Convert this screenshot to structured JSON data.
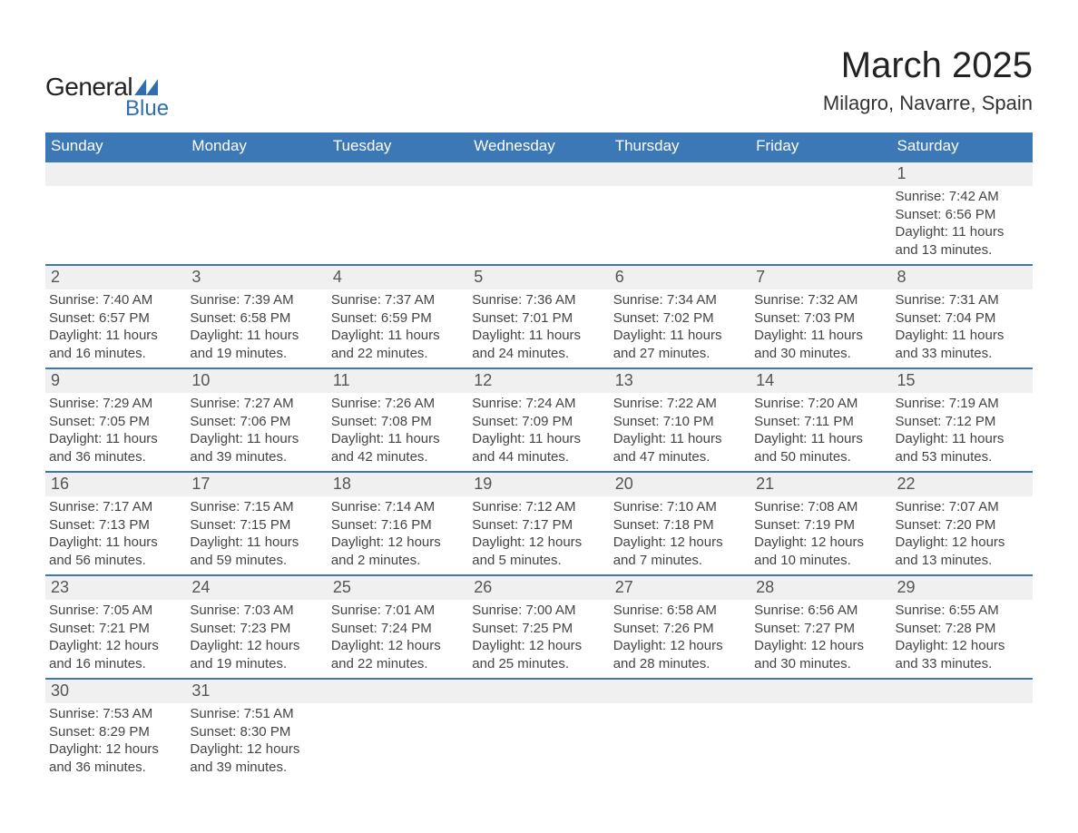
{
  "logo": {
    "general": "General",
    "blue": "Blue"
  },
  "title": "March 2025",
  "location": "Milagro, Navarre, Spain",
  "colors": {
    "header_bg": "#3b78b5",
    "header_text": "#ffffff",
    "daynum_bg": "#f0f0f0",
    "border": "#3b78b5",
    "text": "#444444"
  },
  "day_names": [
    "Sunday",
    "Monday",
    "Tuesday",
    "Wednesday",
    "Thursday",
    "Friday",
    "Saturday"
  ],
  "weeks": [
    {
      "days": [
        {
          "num": "",
          "sunrise": "",
          "sunset": "",
          "daylight1": "",
          "daylight2": ""
        },
        {
          "num": "",
          "sunrise": "",
          "sunset": "",
          "daylight1": "",
          "daylight2": ""
        },
        {
          "num": "",
          "sunrise": "",
          "sunset": "",
          "daylight1": "",
          "daylight2": ""
        },
        {
          "num": "",
          "sunrise": "",
          "sunset": "",
          "daylight1": "",
          "daylight2": ""
        },
        {
          "num": "",
          "sunrise": "",
          "sunset": "",
          "daylight1": "",
          "daylight2": ""
        },
        {
          "num": "",
          "sunrise": "",
          "sunset": "",
          "daylight1": "",
          "daylight2": ""
        },
        {
          "num": "1",
          "sunrise": "Sunrise: 7:42 AM",
          "sunset": "Sunset: 6:56 PM",
          "daylight1": "Daylight: 11 hours",
          "daylight2": "and 13 minutes."
        }
      ]
    },
    {
      "days": [
        {
          "num": "2",
          "sunrise": "Sunrise: 7:40 AM",
          "sunset": "Sunset: 6:57 PM",
          "daylight1": "Daylight: 11 hours",
          "daylight2": "and 16 minutes."
        },
        {
          "num": "3",
          "sunrise": "Sunrise: 7:39 AM",
          "sunset": "Sunset: 6:58 PM",
          "daylight1": "Daylight: 11 hours",
          "daylight2": "and 19 minutes."
        },
        {
          "num": "4",
          "sunrise": "Sunrise: 7:37 AM",
          "sunset": "Sunset: 6:59 PM",
          "daylight1": "Daylight: 11 hours",
          "daylight2": "and 22 minutes."
        },
        {
          "num": "5",
          "sunrise": "Sunrise: 7:36 AM",
          "sunset": "Sunset: 7:01 PM",
          "daylight1": "Daylight: 11 hours",
          "daylight2": "and 24 minutes."
        },
        {
          "num": "6",
          "sunrise": "Sunrise: 7:34 AM",
          "sunset": "Sunset: 7:02 PM",
          "daylight1": "Daylight: 11 hours",
          "daylight2": "and 27 minutes."
        },
        {
          "num": "7",
          "sunrise": "Sunrise: 7:32 AM",
          "sunset": "Sunset: 7:03 PM",
          "daylight1": "Daylight: 11 hours",
          "daylight2": "and 30 minutes."
        },
        {
          "num": "8",
          "sunrise": "Sunrise: 7:31 AM",
          "sunset": "Sunset: 7:04 PM",
          "daylight1": "Daylight: 11 hours",
          "daylight2": "and 33 minutes."
        }
      ]
    },
    {
      "days": [
        {
          "num": "9",
          "sunrise": "Sunrise: 7:29 AM",
          "sunset": "Sunset: 7:05 PM",
          "daylight1": "Daylight: 11 hours",
          "daylight2": "and 36 minutes."
        },
        {
          "num": "10",
          "sunrise": "Sunrise: 7:27 AM",
          "sunset": "Sunset: 7:06 PM",
          "daylight1": "Daylight: 11 hours",
          "daylight2": "and 39 minutes."
        },
        {
          "num": "11",
          "sunrise": "Sunrise: 7:26 AM",
          "sunset": "Sunset: 7:08 PM",
          "daylight1": "Daylight: 11 hours",
          "daylight2": "and 42 minutes."
        },
        {
          "num": "12",
          "sunrise": "Sunrise: 7:24 AM",
          "sunset": "Sunset: 7:09 PM",
          "daylight1": "Daylight: 11 hours",
          "daylight2": "and 44 minutes."
        },
        {
          "num": "13",
          "sunrise": "Sunrise: 7:22 AM",
          "sunset": "Sunset: 7:10 PM",
          "daylight1": "Daylight: 11 hours",
          "daylight2": "and 47 minutes."
        },
        {
          "num": "14",
          "sunrise": "Sunrise: 7:20 AM",
          "sunset": "Sunset: 7:11 PM",
          "daylight1": "Daylight: 11 hours",
          "daylight2": "and 50 minutes."
        },
        {
          "num": "15",
          "sunrise": "Sunrise: 7:19 AM",
          "sunset": "Sunset: 7:12 PM",
          "daylight1": "Daylight: 11 hours",
          "daylight2": "and 53 minutes."
        }
      ]
    },
    {
      "days": [
        {
          "num": "16",
          "sunrise": "Sunrise: 7:17 AM",
          "sunset": "Sunset: 7:13 PM",
          "daylight1": "Daylight: 11 hours",
          "daylight2": "and 56 minutes."
        },
        {
          "num": "17",
          "sunrise": "Sunrise: 7:15 AM",
          "sunset": "Sunset: 7:15 PM",
          "daylight1": "Daylight: 11 hours",
          "daylight2": "and 59 minutes."
        },
        {
          "num": "18",
          "sunrise": "Sunrise: 7:14 AM",
          "sunset": "Sunset: 7:16 PM",
          "daylight1": "Daylight: 12 hours",
          "daylight2": "and 2 minutes."
        },
        {
          "num": "19",
          "sunrise": "Sunrise: 7:12 AM",
          "sunset": "Sunset: 7:17 PM",
          "daylight1": "Daylight: 12 hours",
          "daylight2": "and 5 minutes."
        },
        {
          "num": "20",
          "sunrise": "Sunrise: 7:10 AM",
          "sunset": "Sunset: 7:18 PM",
          "daylight1": "Daylight: 12 hours",
          "daylight2": "and 7 minutes."
        },
        {
          "num": "21",
          "sunrise": "Sunrise: 7:08 AM",
          "sunset": "Sunset: 7:19 PM",
          "daylight1": "Daylight: 12 hours",
          "daylight2": "and 10 minutes."
        },
        {
          "num": "22",
          "sunrise": "Sunrise: 7:07 AM",
          "sunset": "Sunset: 7:20 PM",
          "daylight1": "Daylight: 12 hours",
          "daylight2": "and 13 minutes."
        }
      ]
    },
    {
      "days": [
        {
          "num": "23",
          "sunrise": "Sunrise: 7:05 AM",
          "sunset": "Sunset: 7:21 PM",
          "daylight1": "Daylight: 12 hours",
          "daylight2": "and 16 minutes."
        },
        {
          "num": "24",
          "sunrise": "Sunrise: 7:03 AM",
          "sunset": "Sunset: 7:23 PM",
          "daylight1": "Daylight: 12 hours",
          "daylight2": "and 19 minutes."
        },
        {
          "num": "25",
          "sunrise": "Sunrise: 7:01 AM",
          "sunset": "Sunset: 7:24 PM",
          "daylight1": "Daylight: 12 hours",
          "daylight2": "and 22 minutes."
        },
        {
          "num": "26",
          "sunrise": "Sunrise: 7:00 AM",
          "sunset": "Sunset: 7:25 PM",
          "daylight1": "Daylight: 12 hours",
          "daylight2": "and 25 minutes."
        },
        {
          "num": "27",
          "sunrise": "Sunrise: 6:58 AM",
          "sunset": "Sunset: 7:26 PM",
          "daylight1": "Daylight: 12 hours",
          "daylight2": "and 28 minutes."
        },
        {
          "num": "28",
          "sunrise": "Sunrise: 6:56 AM",
          "sunset": "Sunset: 7:27 PM",
          "daylight1": "Daylight: 12 hours",
          "daylight2": "and 30 minutes."
        },
        {
          "num": "29",
          "sunrise": "Sunrise: 6:55 AM",
          "sunset": "Sunset: 7:28 PM",
          "daylight1": "Daylight: 12 hours",
          "daylight2": "and 33 minutes."
        }
      ]
    },
    {
      "days": [
        {
          "num": "30",
          "sunrise": "Sunrise: 7:53 AM",
          "sunset": "Sunset: 8:29 PM",
          "daylight1": "Daylight: 12 hours",
          "daylight2": "and 36 minutes."
        },
        {
          "num": "31",
          "sunrise": "Sunrise: 7:51 AM",
          "sunset": "Sunset: 8:30 PM",
          "daylight1": "Daylight: 12 hours",
          "daylight2": "and 39 minutes."
        },
        {
          "num": "",
          "sunrise": "",
          "sunset": "",
          "daylight1": "",
          "daylight2": ""
        },
        {
          "num": "",
          "sunrise": "",
          "sunset": "",
          "daylight1": "",
          "daylight2": ""
        },
        {
          "num": "",
          "sunrise": "",
          "sunset": "",
          "daylight1": "",
          "daylight2": ""
        },
        {
          "num": "",
          "sunrise": "",
          "sunset": "",
          "daylight1": "",
          "daylight2": ""
        },
        {
          "num": "",
          "sunrise": "",
          "sunset": "",
          "daylight1": "",
          "daylight2": ""
        }
      ]
    }
  ]
}
